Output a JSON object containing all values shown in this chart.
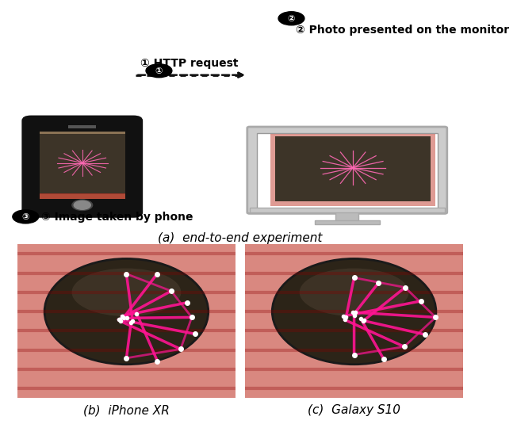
{
  "title_a": "(a)  end-to-end experiment",
  "title_b": "(b)  iPhone XR",
  "title_c": "(c)  Galaxy S10",
  "label_1": "① HTTP request",
  "label_2": "② Photo presented on the monitor",
  "label_3": "③ Image taken by phone",
  "bg_color": "#ffffff",
  "phone_color": "#111111",
  "monitor_outer": "#b0b0b0",
  "monitor_screen_bg": "#ffffff",
  "arrow_color": "#111111",
  "font_size_labels": 10,
  "font_size_captions": 11
}
